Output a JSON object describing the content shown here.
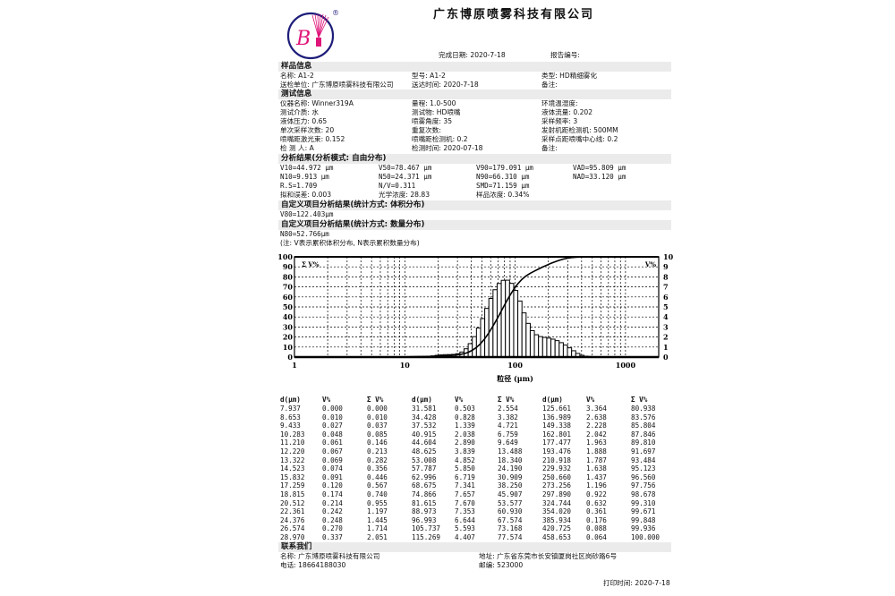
{
  "company_name": "广东博原喷雾科技有限公司",
  "logo": {
    "letter": "B",
    "registered_mark": "®",
    "colors": {
      "ring": "#1d1d7a",
      "accent": "#e0157a"
    }
  },
  "report_meta": {
    "finish_date_label": "完成日期",
    "finish_date": "2020-7-18",
    "report_no_label": "报告编号",
    "report_no": ""
  },
  "sample_info": {
    "heading": "样品信息",
    "rows": [
      [
        {
          "label": "名称",
          "value": "A1-2"
        },
        {
          "label": "型号",
          "value": "A1-2"
        },
        {
          "label": "类型",
          "value": "HD精细雾化"
        }
      ],
      [
        {
          "label": "送检单位",
          "value": "广东博原喷雾科技有限公司"
        },
        {
          "label": "送达时间",
          "value": "2020-7-18"
        },
        {
          "label": "备注",
          "value": ""
        }
      ]
    ]
  },
  "test_info": {
    "heading": "测试信息",
    "rows": [
      [
        {
          "label": "仪器名称",
          "value": "Winner319A"
        },
        {
          "label": "量程",
          "value": "1.0-500"
        },
        {
          "label": "环境温湿度",
          "value": ""
        }
      ],
      [
        {
          "label": "测试介质",
          "value": "水"
        },
        {
          "label": "测试物",
          "value": "HD喷嘴"
        },
        {
          "label": "液体流量",
          "value": "0.202"
        }
      ],
      [
        {
          "label": "液体压力",
          "value": "0.65"
        },
        {
          "label": "喷雾角度",
          "value": "35"
        },
        {
          "label": "采样频率",
          "value": "3"
        }
      ],
      [
        {
          "label": "单次采样次数",
          "value": "20"
        },
        {
          "label": "重复次数",
          "value": ""
        },
        {
          "label": "发射机距检测机",
          "value": "500MM"
        }
      ],
      [
        {
          "label": "喷嘴距激光束",
          "value": "0.152"
        },
        {
          "label": "喷嘴距检测机",
          "value": "0.2"
        },
        {
          "label": "采样点距喷嘴中心线",
          "value": "0.2"
        }
      ],
      [
        {
          "label": "检 测 人",
          "value": "A"
        },
        {
          "label": "检测时间",
          "value": "2020-07-18"
        },
        {
          "label": "备注",
          "value": ""
        }
      ]
    ]
  },
  "analysis": {
    "heading": "分析结果(分析模式: 自由分布)",
    "rows": [
      [
        "V10=44.972 μm",
        "V50=78.467 μm",
        "V90=179.091 μm",
        "VAD=95.809 μm"
      ],
      [
        "N10=9.913 μm",
        "N50=24.371 μm",
        "N90=66.310 μm",
        "NAD=33.120 μm"
      ],
      [
        "R.S=1.709",
        "N/V=0.311",
        "SMD=71.159 μm",
        ""
      ],
      [
        "拟和误差: 0.003",
        "光学浓度: 28.83",
        "样品浓度: 0.34%",
        ""
      ]
    ]
  },
  "custom_volume": {
    "heading": "自定义项目分析结果(统计方式: 体积分布)",
    "value": "V80=122.403μm"
  },
  "custom_number": {
    "heading": "自定义项目分析结果(统计方式: 数量分布)",
    "value": "N80=52.766μm"
  },
  "note": "(注: V表示累积体积分布, N表示累积数量分布)",
  "chart_data": {
    "type": "bar+line",
    "xlabel": "粒径 (μm)",
    "x_scale": "log",
    "xlim": [
      1,
      2000
    ],
    "x_ticks": [
      "1",
      "10",
      "100",
      "1000"
    ],
    "left_axis": {
      "label": "Σ V%",
      "ylim": [
        0,
        100
      ],
      "ticks": [
        "0",
        "10",
        "20",
        "30",
        "40",
        "50",
        "60",
        "70",
        "80",
        "90",
        "100"
      ]
    },
    "right_axis": {
      "label": "V%",
      "ylim": [
        0,
        10
      ],
      "ticks": [
        "0",
        "1",
        "2",
        "3",
        "4",
        "5",
        "6",
        "7",
        "8",
        "9",
        "10"
      ]
    },
    "grid": true,
    "d": [
      7.937,
      8.653,
      9.433,
      10.283,
      11.21,
      12.22,
      13.322,
      14.523,
      15.832,
      17.259,
      18.815,
      20.512,
      22.361,
      24.376,
      26.574,
      28.97,
      31.581,
      34.428,
      37.532,
      40.915,
      44.604,
      48.625,
      53.008,
      57.787,
      62.996,
      68.675,
      74.866,
      81.615,
      88.973,
      96.993,
      105.737,
      115.269,
      125.661,
      136.989,
      149.338,
      162.801,
      177.477,
      193.476,
      210.918,
      229.932,
      250.66,
      273.256,
      297.89,
      324.744,
      354.02,
      385.934,
      420.725,
      458.653
    ],
    "v": [
      0.0,
      0.01,
      0.027,
      0.048,
      0.061,
      0.067,
      0.069,
      0.074,
      0.091,
      0.12,
      0.174,
      0.214,
      0.242,
      0.248,
      0.27,
      0.337,
      0.503,
      0.828,
      1.339,
      2.038,
      2.89,
      3.839,
      4.852,
      5.85,
      6.719,
      7.341,
      7.657,
      7.67,
      7.353,
      6.644,
      5.593,
      4.407,
      3.364,
      2.638,
      2.228,
      2.042,
      1.963,
      1.888,
      1.787,
      1.638,
      1.437,
      1.196,
      0.922,
      0.632,
      0.361,
      0.176,
      0.088,
      0.064
    ],
    "cum_v": [
      0.0,
      0.01,
      0.037,
      0.085,
      0.146,
      0.213,
      0.282,
      0.356,
      0.446,
      0.567,
      0.74,
      0.955,
      1.197,
      1.445,
      1.714,
      2.051,
      2.554,
      3.382,
      4.721,
      6.759,
      9.649,
      13.488,
      18.34,
      24.19,
      30.909,
      38.25,
      45.907,
      53.577,
      60.93,
      67.574,
      73.168,
      77.574,
      80.938,
      83.576,
      85.804,
      87.846,
      89.81,
      91.697,
      93.484,
      95.123,
      96.56,
      97.756,
      98.678,
      99.31,
      99.671,
      99.848,
      99.936,
      100.0
    ]
  },
  "table": {
    "headers": [
      "d(μm)",
      "V%",
      "Σ V%"
    ]
  },
  "contact": {
    "heading": "联系我们",
    "rows": [
      [
        {
          "label": "名称",
          "value": "广东博原喷雾科技有限公司"
        },
        {
          "label": "地址",
          "value": "广东省东莞市长安镇厦岗社区岗砂路6号"
        }
      ],
      [
        {
          "label": "电话",
          "value": "18664188030"
        },
        {
          "label": "邮编",
          "value": "523000"
        }
      ]
    ]
  },
  "print_time_label": "打印时间",
  "print_time": "2020-7-18"
}
